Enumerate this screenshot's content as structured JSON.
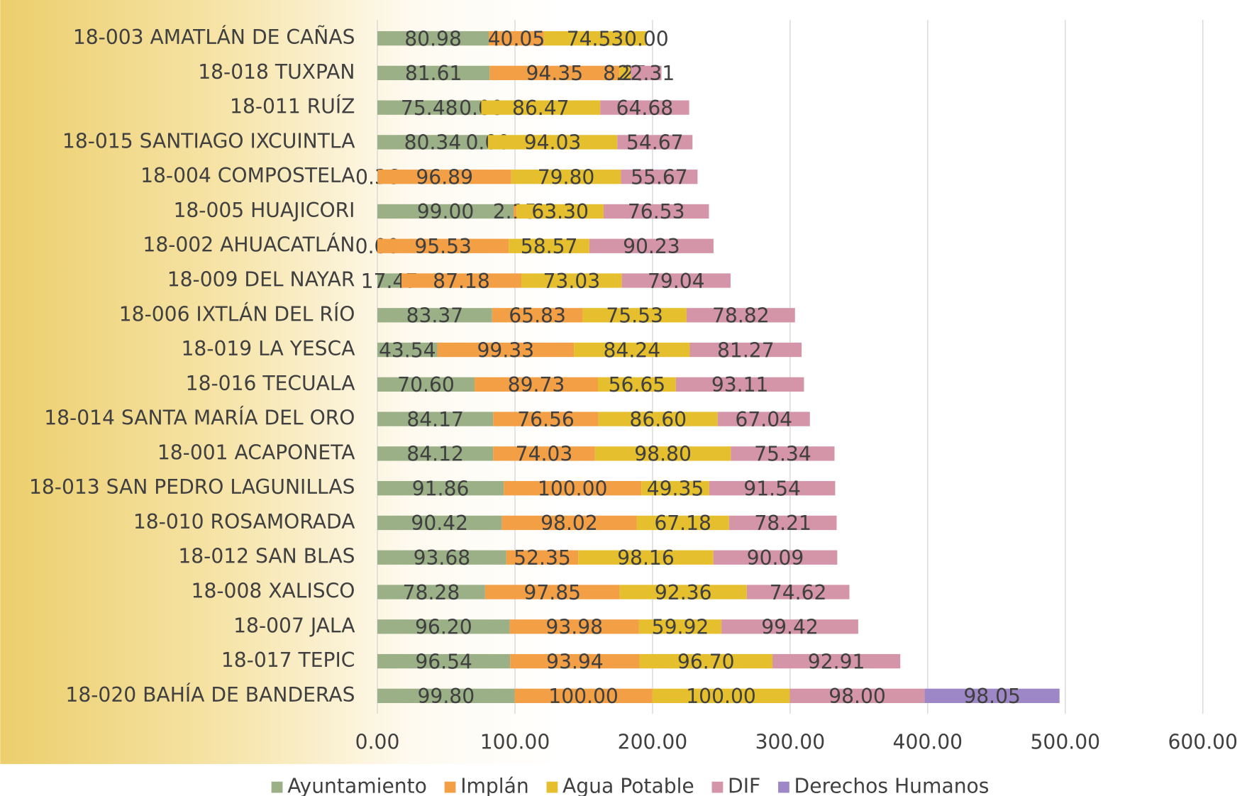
{
  "chart_data": {
    "type": "stacked_barh",
    "categories": [
      "18-003 AMATLÁN DE CAÑAS",
      "18-018 TUXPAN",
      "18-011 RUÍZ",
      "18-015 SANTIAGO IXCUINTLA",
      "18-004 COMPOSTELA",
      "18-005 HUAJICORI",
      "18-002 AHUACATLÁN",
      "18-009 DEL NAYAR",
      "18-006 IXTLÁN DEL RÍO",
      "18-019 LA YESCA",
      "18-016 TECUALA",
      "18-014 SANTA MARÍA DEL ORO",
      "18-001 ACAPONETA",
      "18-013 SAN PEDRO LAGUNILLAS",
      "18-010 ROSAMORADA",
      "18-012 SAN BLAS",
      "18-008 XALISCO",
      "18-007 JALA",
      "18-017 TEPIC",
      "18-020 BAHÍA DE BANDERAS"
    ],
    "series": [
      {
        "name": "Ayuntamiento",
        "color": "#9cb087",
        "values": [
          80.98,
          81.61,
          75.48,
          80.34,
          0.36,
          99.0,
          0.0,
          17.47,
          83.37,
          43.54,
          70.6,
          84.17,
          84.12,
          91.86,
          90.42,
          93.68,
          78.28,
          96.2,
          96.54,
          99.8
        ],
        "value_labels": [
          "80.98",
          "81.61",
          "75.48",
          "80.34",
          "0.36",
          "99.00",
          "0.00",
          "17.47",
          "83.37",
          "43.54",
          "70.60",
          "84.17",
          "84.12",
          "91.86",
          "90.42",
          "93.68",
          "78.28",
          "96.20",
          "96.54",
          "99.80"
        ]
      },
      {
        "name": "Implán",
        "color": "#f39f45",
        "values": [
          40.05,
          94.35,
          0.0,
          0.0,
          96.89,
          2.15,
          95.53,
          87.18,
          65.83,
          99.33,
          89.73,
          76.56,
          74.03,
          100.0,
          98.02,
          52.35,
          97.85,
          93.98,
          93.94,
          100.0
        ],
        "value_labels": [
          "40.05",
          "94.35",
          "0.00",
          "0.00",
          "96.89",
          "2.15",
          "95.53",
          "87.18",
          "65.83",
          "99.33",
          "89.73",
          "76.56",
          "74.03",
          "100.00",
          "98.02",
          "52.35",
          "97.85",
          "93.98",
          "93.94",
          "100.00"
        ]
      },
      {
        "name": "Agua Potable",
        "color": "#e6bf2e",
        "values": [
          74.53,
          8.25,
          86.47,
          94.03,
          79.8,
          63.3,
          58.57,
          73.03,
          75.53,
          84.24,
          56.65,
          86.6,
          98.8,
          49.35,
          67.18,
          98.16,
          92.36,
          59.92,
          96.7,
          100.0
        ],
        "value_labels": [
          "74.53",
          "8.25",
          "86.47",
          "94.03",
          "79.80",
          "63.30",
          "58.57",
          "73.03",
          "75.53",
          "84.24",
          "56.65",
          "86.60",
          "98.80",
          "49.35",
          "67.18",
          "98.16",
          "92.36",
          "59.92",
          "96.70",
          "100.00"
        ]
      },
      {
        "name": "DIF",
        "color": "#d495a9",
        "values": [
          0.0,
          22.31,
          64.68,
          54.67,
          55.67,
          76.53,
          90.23,
          79.04,
          78.82,
          81.27,
          93.11,
          67.04,
          75.34,
          91.54,
          78.21,
          90.09,
          74.62,
          99.42,
          92.91,
          98.0
        ],
        "value_labels": [
          "0.00",
          "22.31",
          "64.68",
          "54.67",
          "55.67",
          "76.53",
          "90.23",
          "79.04",
          "78.82",
          "81.27",
          "93.11",
          "67.04",
          "75.34",
          "91.54",
          "78.21",
          "90.09",
          "74.62",
          "99.42",
          "92.91",
          "98.00"
        ]
      },
      {
        "name": "Derechos Humanos",
        "color": "#9e87c6",
        "values": [
          null,
          null,
          null,
          null,
          null,
          null,
          null,
          null,
          null,
          null,
          null,
          null,
          null,
          null,
          null,
          null,
          null,
          null,
          null,
          98.05
        ],
        "value_labels": [
          null,
          null,
          null,
          null,
          null,
          null,
          null,
          null,
          null,
          null,
          null,
          null,
          null,
          null,
          null,
          null,
          null,
          null,
          null,
          "98.05"
        ]
      }
    ],
    "xlim": [
      0,
      600
    ],
    "xticks": [
      {
        "value": 0,
        "label": "0.00"
      },
      {
        "value": 100,
        "label": "100.00"
      },
      {
        "value": 200,
        "label": "200.00"
      },
      {
        "value": 300,
        "label": "300.00"
      },
      {
        "value": 400,
        "label": "400.00"
      },
      {
        "value": 500,
        "label": "500.00"
      },
      {
        "value": 600,
        "label": "600.00"
      }
    ],
    "grid": true,
    "legend": "bottom"
  }
}
